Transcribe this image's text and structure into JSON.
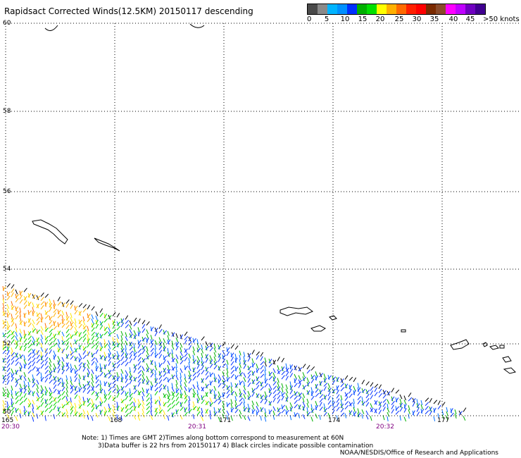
{
  "title": "Rapidsact Corrected Winds(12.5KM) 20150117 descending",
  "legend": {
    "colors": [
      "#4a4a4a",
      "#8a8a8a",
      "#00b4ff",
      "#0090ff",
      "#0030ff",
      "#00b000",
      "#00e000",
      "#ffff00",
      "#ffb000",
      "#ff6a00",
      "#ff2000",
      "#ff0000",
      "#7a2a00",
      "#8a4a2a",
      "#ff00ff",
      "#c000ff",
      "#7000c0",
      "#400090"
    ],
    "labels": [
      "0",
      "5",
      "10",
      "15",
      "20",
      "25",
      "30",
      "35",
      "40",
      "45",
      ">50 knots"
    ]
  },
  "map": {
    "lat_labels": [
      "60",
      "58",
      "56",
      "54",
      "52",
      "50"
    ],
    "lon_labels": [
      "165",
      "168",
      "171",
      "174",
      "177"
    ],
    "time_labels": [
      "20:30",
      "20:31",
      "20:32"
    ]
  },
  "note": "Note: 1) Times are GMT 2)Times along bottom correspond to measurement at 60N\n        3)Data buffer is 22 hrs from 20150117 4) Black circles indicate possible contamination",
  "credit": "NOAA/NESDIS/Office of Research and Applications"
}
